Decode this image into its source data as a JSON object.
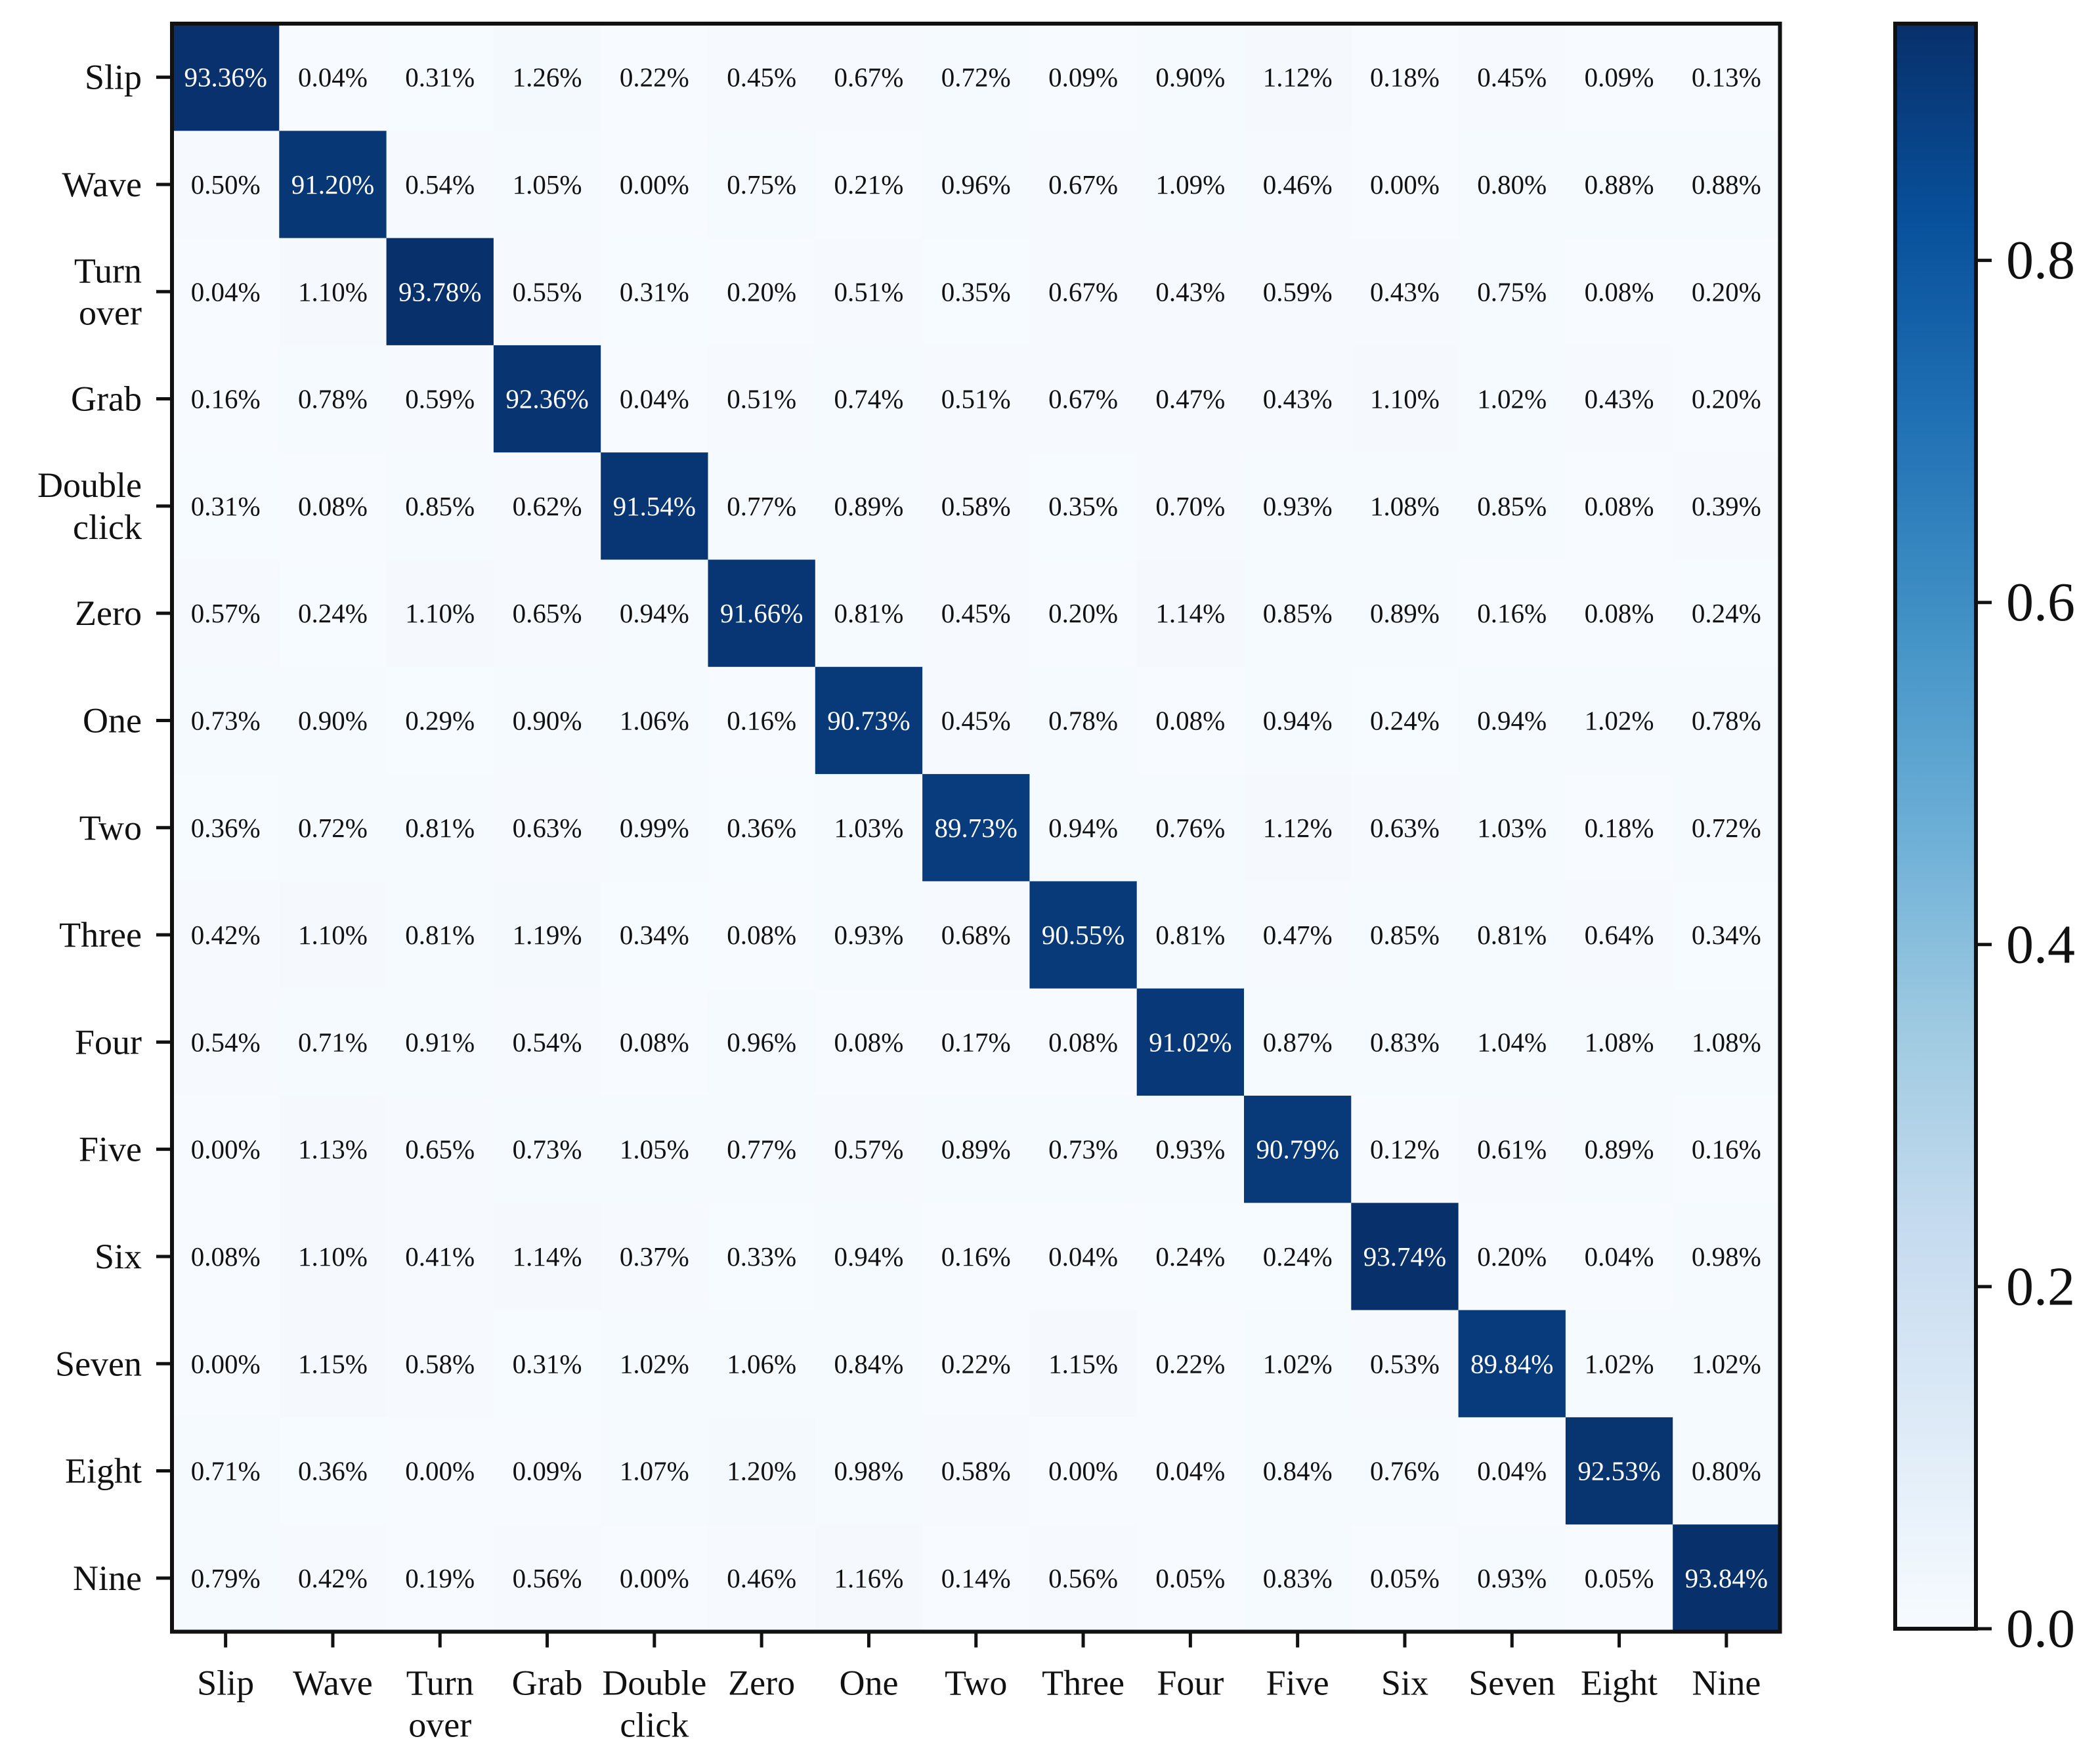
{
  "chart_data": {
    "type": "heatmap",
    "title": "",
    "xlabel": "",
    "ylabel": "",
    "row_labels": [
      [
        "Slip"
      ],
      [
        "Wave"
      ],
      [
        "Turn",
        "over"
      ],
      [
        "Grab"
      ],
      [
        "Double",
        "click"
      ],
      [
        "Zero"
      ],
      [
        "One"
      ],
      [
        "Two"
      ],
      [
        "Three"
      ],
      [
        "Four"
      ],
      [
        "Five"
      ],
      [
        "Six"
      ],
      [
        "Seven"
      ],
      [
        "Eight"
      ],
      [
        "Nine"
      ]
    ],
    "col_labels": [
      [
        "Slip"
      ],
      [
        "Wave"
      ],
      [
        "Turn",
        "over"
      ],
      [
        "Grab"
      ],
      [
        "Double",
        "click"
      ],
      [
        "Zero"
      ],
      [
        "One"
      ],
      [
        "Two"
      ],
      [
        "Three"
      ],
      [
        "Four"
      ],
      [
        "Five"
      ],
      [
        "Six"
      ],
      [
        "Seven"
      ],
      [
        "Eight"
      ],
      [
        "Nine"
      ]
    ],
    "values": [
      [
        93.36,
        0.04,
        0.31,
        1.26,
        0.22,
        0.45,
        0.67,
        0.72,
        0.09,
        0.9,
        1.12,
        0.18,
        0.45,
        0.09,
        0.13
      ],
      [
        0.5,
        91.2,
        0.54,
        1.05,
        0.0,
        0.75,
        0.21,
        0.96,
        0.67,
        1.09,
        0.46,
        0.0,
        0.8,
        0.88,
        0.88
      ],
      [
        0.04,
        1.1,
        93.78,
        0.55,
        0.31,
        0.2,
        0.51,
        0.35,
        0.67,
        0.43,
        0.59,
        0.43,
        0.75,
        0.08,
        0.2
      ],
      [
        0.16,
        0.78,
        0.59,
        92.36,
        0.04,
        0.51,
        0.74,
        0.51,
        0.67,
        0.47,
        0.43,
        1.1,
        1.02,
        0.43,
        0.2
      ],
      [
        0.31,
        0.08,
        0.85,
        0.62,
        91.54,
        0.77,
        0.89,
        0.58,
        0.35,
        0.7,
        0.93,
        1.08,
        0.85,
        0.08,
        0.39
      ],
      [
        0.57,
        0.24,
        1.1,
        0.65,
        0.94,
        91.66,
        0.81,
        0.45,
        0.2,
        1.14,
        0.85,
        0.89,
        0.16,
        0.08,
        0.24
      ],
      [
        0.73,
        0.9,
        0.29,
        0.9,
        1.06,
        0.16,
        90.73,
        0.45,
        0.78,
        0.08,
        0.94,
        0.24,
        0.94,
        1.02,
        0.78
      ],
      [
        0.36,
        0.72,
        0.81,
        0.63,
        0.99,
        0.36,
        1.03,
        89.73,
        0.94,
        0.76,
        1.12,
        0.63,
        1.03,
        0.18,
        0.72
      ],
      [
        0.42,
        1.1,
        0.81,
        1.19,
        0.34,
        0.08,
        0.93,
        0.68,
        90.55,
        0.81,
        0.47,
        0.85,
        0.81,
        0.64,
        0.34
      ],
      [
        0.54,
        0.71,
        0.91,
        0.54,
        0.08,
        0.96,
        0.08,
        0.17,
        0.08,
        91.02,
        0.87,
        0.83,
        1.04,
        1.08,
        1.08
      ],
      [
        0.0,
        1.13,
        0.65,
        0.73,
        1.05,
        0.77,
        0.57,
        0.89,
        0.73,
        0.93,
        90.79,
        0.12,
        0.61,
        0.89,
        0.16
      ],
      [
        0.08,
        1.1,
        0.41,
        1.14,
        0.37,
        0.33,
        0.94,
        0.16,
        0.04,
        0.24,
        0.24,
        93.74,
        0.2,
        0.04,
        0.98
      ],
      [
        0.0,
        1.15,
        0.58,
        0.31,
        1.02,
        1.06,
        0.84,
        0.22,
        1.15,
        0.22,
        1.02,
        0.53,
        89.84,
        1.02,
        1.02
      ],
      [
        0.71,
        0.36,
        0.0,
        0.09,
        1.07,
        1.2,
        0.98,
        0.58,
        0.0,
        0.04,
        0.84,
        0.76,
        0.04,
        92.53,
        0.8
      ],
      [
        0.79,
        0.42,
        0.19,
        0.56,
        0.0,
        0.46,
        1.16,
        0.14,
        0.56,
        0.05,
        0.83,
        0.05,
        0.93,
        0.05,
        93.84
      ]
    ],
    "value_unit": "%",
    "colormap": "Blues",
    "colormap_stops": [
      "#f7fbff",
      "#deebf7",
      "#c6dbef",
      "#9ecae1",
      "#6baed6",
      "#4292c6",
      "#2171b5",
      "#08519c",
      "#08306b"
    ],
    "vmin": 0.0,
    "vmax": 0.9384,
    "colorbar": {
      "ticks": [
        0.0,
        0.2,
        0.4,
        0.6,
        0.8
      ],
      "tick_labels": [
        "0.0",
        "0.2",
        "0.4",
        "0.6",
        "0.8"
      ]
    },
    "text_color_dark_cell": "#ffffff",
    "text_color_light_cell": "#111111",
    "grid": false,
    "legend": "colorbar-right"
  }
}
